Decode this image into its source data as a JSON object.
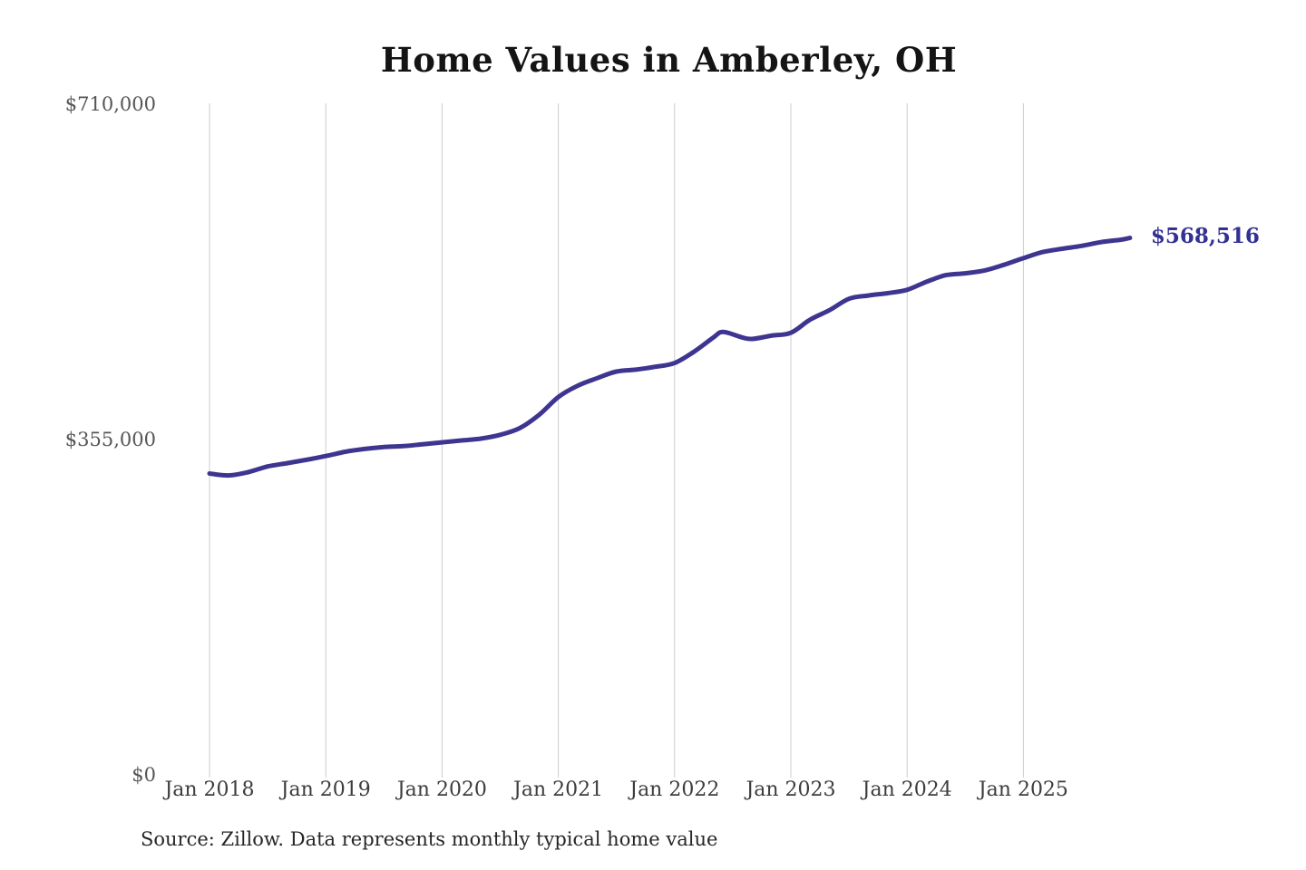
{
  "source_note": "Source: Zillow. Data represents monthly typical home value",
  "chart_data": {
    "type": "line",
    "title": "Home Values in Amberley, OH",
    "series_name": "Monthly typical home value",
    "unit": "USD",
    "latest_label": "$568,516",
    "latest_value": 568516,
    "line_color": "#3d3590",
    "latest_label_color": "#333193",
    "grid_color": "#cdcdcd",
    "legend_position": "none",
    "grid": "vertical-only",
    "ylim": [
      0,
      710000
    ],
    "y_ticks": [
      {
        "label": "$0",
        "value": 0
      },
      {
        "label": "$355,000",
        "value": 355000
      },
      {
        "label": "$710,000",
        "value": 710000
      }
    ],
    "x_ticks": [
      {
        "label": "Jan 2018",
        "year": 2018
      },
      {
        "label": "Jan 2019",
        "year": 2019
      },
      {
        "label": "Jan 2020",
        "year": 2020
      },
      {
        "label": "Jan 2021",
        "year": 2021
      },
      {
        "label": "Jan 2022",
        "year": 2022
      },
      {
        "label": "Jan 2023",
        "year": 2023
      },
      {
        "label": "Jan 2024",
        "year": 2024
      },
      {
        "label": "Jan 2025",
        "year": 2025
      }
    ],
    "points": [
      {
        "date": "2018-01",
        "value": 319000
      },
      {
        "date": "2018-03",
        "value": 317000
      },
      {
        "date": "2018-05",
        "value": 320500
      },
      {
        "date": "2018-07",
        "value": 326500
      },
      {
        "date": "2018-09",
        "value": 330000
      },
      {
        "date": "2018-11",
        "value": 333500
      },
      {
        "date": "2019-01",
        "value": 337500
      },
      {
        "date": "2019-03",
        "value": 342000
      },
      {
        "date": "2019-05",
        "value": 345000
      },
      {
        "date": "2019-07",
        "value": 347000
      },
      {
        "date": "2019-09",
        "value": 348000
      },
      {
        "date": "2019-11",
        "value": 350000
      },
      {
        "date": "2020-01",
        "value": 352000
      },
      {
        "date": "2020-03",
        "value": 354000
      },
      {
        "date": "2020-05",
        "value": 356000
      },
      {
        "date": "2020-07",
        "value": 360000
      },
      {
        "date": "2020-09",
        "value": 367000
      },
      {
        "date": "2020-11",
        "value": 381000
      },
      {
        "date": "2021-01",
        "value": 400000
      },
      {
        "date": "2021-03",
        "value": 412000
      },
      {
        "date": "2021-05",
        "value": 420000
      },
      {
        "date": "2021-07",
        "value": 427000
      },
      {
        "date": "2021-09",
        "value": 429000
      },
      {
        "date": "2021-11",
        "value": 432000
      },
      {
        "date": "2022-01",
        "value": 436000
      },
      {
        "date": "2022-03",
        "value": 448000
      },
      {
        "date": "2022-05",
        "value": 463000
      },
      {
        "date": "2022-06",
        "value": 469000
      },
      {
        "date": "2022-08",
        "value": 463000
      },
      {
        "date": "2022-09",
        "value": 461500
      },
      {
        "date": "2022-11",
        "value": 465000
      },
      {
        "date": "2023-01",
        "value": 468000
      },
      {
        "date": "2023-03",
        "value": 482000
      },
      {
        "date": "2023-05",
        "value": 492000
      },
      {
        "date": "2023-07",
        "value": 504000
      },
      {
        "date": "2023-09",
        "value": 507500
      },
      {
        "date": "2023-11",
        "value": 510000
      },
      {
        "date": "2024-01",
        "value": 513500
      },
      {
        "date": "2024-03",
        "value": 522000
      },
      {
        "date": "2024-05",
        "value": 529000
      },
      {
        "date": "2024-07",
        "value": 531000
      },
      {
        "date": "2024-09",
        "value": 534000
      },
      {
        "date": "2024-11",
        "value": 540000
      },
      {
        "date": "2025-01",
        "value": 547000
      },
      {
        "date": "2025-03",
        "value": 553500
      },
      {
        "date": "2025-05",
        "value": 557000
      },
      {
        "date": "2025-07",
        "value": 560000
      },
      {
        "date": "2025-09",
        "value": 564000
      },
      {
        "date": "2025-11",
        "value": 566500
      },
      {
        "date": "2025-12",
        "value": 568516
      }
    ]
  }
}
